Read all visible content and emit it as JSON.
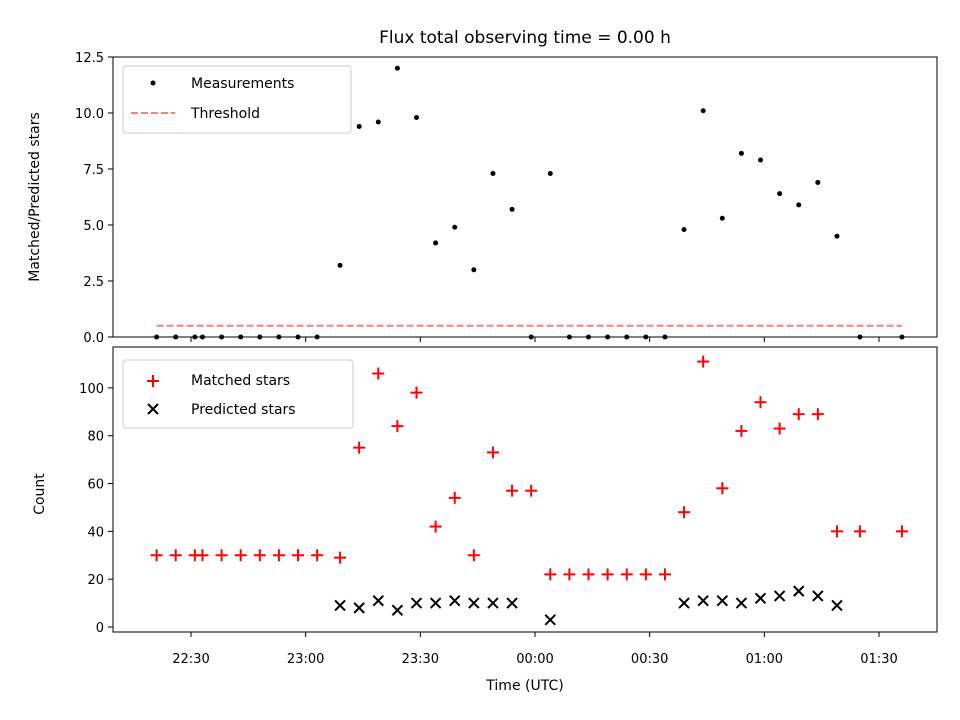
{
  "chart_data": [
    {
      "type": "scatter",
      "title": "Flux total observing time = 0.00 h",
      "xlabel": "",
      "ylabel": "Matched/Predicted stars",
      "ylim": [
        0,
        12.5
      ],
      "yticks": [
        "0.0",
        "2.5",
        "5.0",
        "7.5",
        "10.0",
        "12.5"
      ],
      "legend": "top-left",
      "grid": false,
      "series": [
        {
          "name": "Measurements",
          "marker": "dot",
          "color": "#000000",
          "points": [
            [
              "22:21",
              0
            ],
            [
              "22:26",
              0
            ],
            [
              "22:31",
              0
            ],
            [
              "22:33",
              0
            ],
            [
              "22:38",
              0
            ],
            [
              "22:43",
              0
            ],
            [
              "22:48",
              0
            ],
            [
              "22:53",
              0
            ],
            [
              "22:58",
              0
            ],
            [
              "23:03",
              0
            ],
            [
              "23:09",
              3.2
            ],
            [
              "23:14",
              9.4
            ],
            [
              "23:19",
              9.6
            ],
            [
              "23:24",
              12.0
            ],
            [
              "23:29",
              9.8
            ],
            [
              "23:34",
              4.2
            ],
            [
              "23:39",
              4.9
            ],
            [
              "23:44",
              3.0
            ],
            [
              "23:49",
              7.3
            ],
            [
              "23:54",
              5.7
            ],
            [
              "23:59",
              0
            ],
            [
              "00:04",
              7.3
            ],
            [
              "00:09",
              0
            ],
            [
              "00:14",
              0
            ],
            [
              "00:19",
              0
            ],
            [
              "00:24",
              0
            ],
            [
              "00:29",
              0
            ],
            [
              "00:34",
              0
            ],
            [
              "00:39",
              4.8
            ],
            [
              "00:44",
              10.1
            ],
            [
              "00:49",
              5.3
            ],
            [
              "00:54",
              8.2
            ],
            [
              "00:59",
              7.9
            ],
            [
              "01:04",
              6.4
            ],
            [
              "01:09",
              5.9
            ],
            [
              "01:14",
              6.9
            ],
            [
              "01:19",
              4.5
            ],
            [
              "01:25",
              0
            ],
            [
              "01:36",
              0
            ]
          ]
        },
        {
          "name": "Threshold",
          "marker": "dashed-line",
          "color": "#ff7f7f",
          "points": [
            [
              "22:21",
              0.5
            ],
            [
              "01:36",
              0.5
            ]
          ]
        }
      ]
    },
    {
      "type": "scatter",
      "title": "",
      "xlabel": "Time (UTC)",
      "ylabel": "Count",
      "ylim": [
        0,
        115
      ],
      "yticks": [
        "0",
        "20",
        "40",
        "60",
        "80",
        "100"
      ],
      "xticks": [
        "22:30",
        "23:00",
        "23:30",
        "00:00",
        "00:30",
        "01:00",
        "01:30"
      ],
      "legend": "top-left",
      "grid": false,
      "series": [
        {
          "name": "Matched stars",
          "marker": "plus",
          "color": "#ff0000",
          "points": [
            [
              "22:21",
              30
            ],
            [
              "22:26",
              30
            ],
            [
              "22:31",
              30
            ],
            [
              "22:33",
              30
            ],
            [
              "22:38",
              30
            ],
            [
              "22:43",
              30
            ],
            [
              "22:48",
              30
            ],
            [
              "22:53",
              30
            ],
            [
              "22:58",
              30
            ],
            [
              "23:03",
              30
            ],
            [
              "23:09",
              29
            ],
            [
              "23:14",
              75
            ],
            [
              "23:19",
              106
            ],
            [
              "23:24",
              84
            ],
            [
              "23:29",
              98
            ],
            [
              "23:34",
              42
            ],
            [
              "23:39",
              54
            ],
            [
              "23:44",
              30
            ],
            [
              "23:49",
              73
            ],
            [
              "23:54",
              57
            ],
            [
              "23:59",
              57
            ],
            [
              "00:04",
              22
            ],
            [
              "00:09",
              22
            ],
            [
              "00:14",
              22
            ],
            [
              "00:19",
              22
            ],
            [
              "00:24",
              22
            ],
            [
              "00:29",
              22
            ],
            [
              "00:34",
              22
            ],
            [
              "00:39",
              48
            ],
            [
              "00:44",
              111
            ],
            [
              "00:49",
              58
            ],
            [
              "00:54",
              82
            ],
            [
              "00:59",
              94
            ],
            [
              "01:04",
              83
            ],
            [
              "01:09",
              89
            ],
            [
              "01:14",
              89
            ],
            [
              "01:19",
              40
            ],
            [
              "01:25",
              40
            ],
            [
              "01:36",
              40
            ]
          ]
        },
        {
          "name": "Predicted stars",
          "marker": "x",
          "color": "#000000",
          "points": [
            [
              "23:09",
              9
            ],
            [
              "23:14",
              8
            ],
            [
              "23:19",
              11
            ],
            [
              "23:24",
              7
            ],
            [
              "23:29",
              10
            ],
            [
              "23:34",
              10
            ],
            [
              "23:39",
              11
            ],
            [
              "23:44",
              10
            ],
            [
              "23:49",
              10
            ],
            [
              "23:54",
              10
            ],
            [
              "00:04",
              3
            ],
            [
              "00:39",
              10
            ],
            [
              "00:44",
              11
            ],
            [
              "00:49",
              11
            ],
            [
              "00:54",
              10
            ],
            [
              "00:59",
              12
            ],
            [
              "01:04",
              13
            ],
            [
              "01:09",
              15
            ],
            [
              "01:14",
              13
            ],
            [
              "01:19",
              9
            ]
          ]
        }
      ]
    }
  ]
}
